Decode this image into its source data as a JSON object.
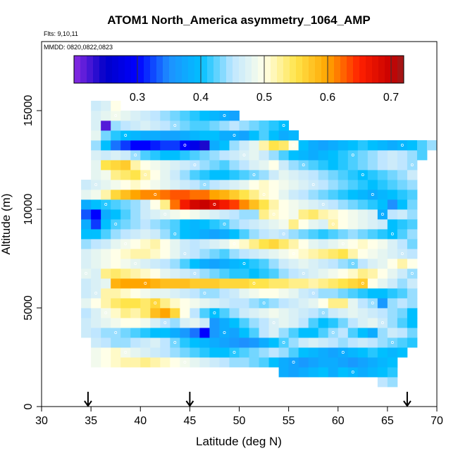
{
  "chart_data": {
    "type": "heatmap",
    "title": "ATOM1 North_America asymmetry_1064_AMP",
    "flights_label": "Flts: 9,10,11",
    "dates_label": "MMDD: 0820,0822,0823",
    "xlabel": "Latitude (deg N)",
    "ylabel": "Altitude (m)",
    "xlim": [
      30,
      70
    ],
    "ylim": [
      0,
      18500
    ],
    "x_ticks": [
      30,
      35,
      40,
      45,
      50,
      55,
      60,
      65,
      70
    ],
    "y_ticks": [
      0,
      5000,
      10000,
      15000
    ],
    "colorbar": {
      "min": 0.2,
      "max": 0.7,
      "ticks": [
        0.3,
        0.4,
        0.5,
        0.6,
        0.7
      ],
      "stops": [
        {
          "v": 0.2,
          "color": "#8a2be2"
        },
        {
          "v": 0.25,
          "color": "#0000c8"
        },
        {
          "v": 0.3,
          "color": "#0000ff"
        },
        {
          "v": 0.35,
          "color": "#1e90ff"
        },
        {
          "v": 0.4,
          "color": "#00bfff"
        },
        {
          "v": 0.45,
          "color": "#bfe6ff"
        },
        {
          "v": 0.5,
          "color": "#ffffe8"
        },
        {
          "v": 0.55,
          "color": "#ffe44a"
        },
        {
          "v": 0.6,
          "color": "#ffa500"
        },
        {
          "v": 0.65,
          "color": "#ff2000"
        },
        {
          "v": 0.7,
          "color": "#c80000"
        },
        {
          "v": 0.72,
          "color": "#9b1b1b"
        }
      ]
    },
    "arrows_x": [
      34.7,
      45.0,
      67.0
    ],
    "grid": {
      "lat_start": 34,
      "lat_step": 1,
      "alt_start": 1000,
      "alt_step": 500,
      "rows": [
        [
          null,
          null,
          null,
          null,
          null,
          null,
          null,
          null,
          null,
          null,
          null,
          null,
          null,
          null,
          null,
          null,
          null,
          null,
          null,
          null,
          null,
          null,
          null,
          null,
          null,
          null,
          null,
          null,
          null,
          null,
          0.45,
          0.44
        ],
        [
          null,
          null,
          null,
          null,
          null,
          null,
          null,
          null,
          null,
          null,
          null,
          null,
          null,
          null,
          null,
          null,
          null,
          null,
          null,
          null,
          0.38,
          0.37,
          0.38,
          0.39,
          0.4,
          0.38,
          0.4,
          0.39,
          0.38,
          0.39,
          0.4,
          0.41
        ],
        [
          null,
          0.49,
          0.5,
          0.51,
          0.52,
          0.52,
          0.53,
          0.52,
          0.51,
          0.5,
          0.49,
          0.48,
          0.47,
          0.46,
          0.45,
          0.44,
          0.44,
          0.43,
          0.42,
          0.4,
          0.38,
          0.37,
          0.36,
          0.37,
          0.38,
          0.38,
          0.37,
          0.36,
          0.37,
          0.38,
          0.39,
          0.4
        ],
        [
          null,
          0.49,
          0.5,
          0.51,
          0.49,
          0.48,
          0.47,
          0.46,
          0.45,
          0.44,
          0.43,
          0.42,
          0.41,
          0.4,
          0.4,
          0.41,
          0.42,
          0.43,
          0.44,
          0.45,
          0.44,
          0.42,
          0.4,
          0.39,
          0.38,
          0.37,
          0.38,
          0.39,
          0.4,
          0.41,
          0.4,
          0.39,
          0.4
        ],
        [
          null,
          0.46,
          0.45,
          0.44,
          0.44,
          0.45,
          0.46,
          0.47,
          0.45,
          0.43,
          0.41,
          0.4,
          0.39,
          0.38,
          0.37,
          0.36,
          0.35,
          0.36,
          0.38,
          0.4,
          0.42,
          0.44,
          0.46,
          0.47,
          0.46,
          0.45,
          0.44,
          0.45,
          0.46,
          0.45,
          0.44,
          0.43,
          0.42,
          0.41
        ],
        [
          0.46,
          0.45,
          0.44,
          0.44,
          0.43,
          0.42,
          0.41,
          0.4,
          0.4,
          0.38,
          0.36,
          0.34,
          0.3,
          0.36,
          0.38,
          0.37,
          0.4,
          0.42,
          0.45,
          0.47,
          0.44,
          0.42,
          0.4,
          0.4,
          0.42,
          0.44,
          0.45,
          0.42,
          0.4,
          0.38,
          0.44,
          0.46,
          0.45,
          0.43
        ],
        [
          0.46,
          0.47,
          0.48,
          0.49,
          0.5,
          0.5,
          0.49,
          0.47,
          0.45,
          0.44,
          0.47,
          0.48,
          0.46,
          0.36,
          0.38,
          0.4,
          0.42,
          0.44,
          0.45,
          0.47,
          0.48,
          0.47,
          0.45,
          0.42,
          0.4,
          0.41,
          0.43,
          0.45,
          0.47,
          0.48,
          0.46,
          0.44,
          0.42,
          0.4
        ],
        [
          0.45,
          0.47,
          0.49,
          0.51,
          0.53,
          0.52,
          0.54,
          0.58,
          0.6,
          0.56,
          0.5,
          0.45,
          0.42,
          0.4,
          0.42,
          0.44,
          0.46,
          0.47,
          0.48,
          0.49,
          0.48,
          0.47,
          0.46,
          0.45,
          0.44,
          0.46,
          0.47,
          0.48,
          0.47,
          0.46,
          0.45,
          0.44,
          0.43,
          0.4
        ],
        [
          0.48,
          0.5,
          0.52,
          0.54,
          0.55,
          0.55,
          0.54,
          0.56,
          0.53,
          0.51,
          0.5,
          0.49,
          0.48,
          0.47,
          0.46,
          0.45,
          0.45,
          0.44,
          0.43,
          0.44,
          0.45,
          0.46,
          0.47,
          0.48,
          0.5,
          0.53,
          0.53,
          0.48,
          0.45,
          0.44,
          0.36,
          0.44,
          0.45,
          0.44
        ],
        [
          0.46,
          0.47,
          0.52,
          0.52,
          0.51,
          0.5,
          0.49,
          0.48,
          0.48,
          0.47,
          0.46,
          0.45,
          0.44,
          0.44,
          0.45,
          0.46,
          0.48,
          0.49,
          0.5,
          0.5,
          0.49,
          0.48,
          0.46,
          0.45,
          0.44,
          0.44,
          0.43,
          0.42,
          0.41,
          0.4,
          0.4,
          0.41,
          0.42,
          0.44
        ],
        [
          0.46,
          0.47,
          0.48,
          0.59,
          0.6,
          0.6,
          0.6,
          0.59,
          0.58,
          0.58,
          0.58,
          0.57,
          0.57,
          0.57,
          0.56,
          0.56,
          0.56,
          0.55,
          0.55,
          0.54,
          0.54,
          0.53,
          0.53,
          0.52,
          0.53,
          0.54,
          0.55,
          0.56,
          0.57,
          0.5,
          0.48,
          0.46,
          0.44,
          0.46
        ],
        [
          0.48,
          0.47,
          0.53,
          0.54,
          0.53,
          0.52,
          0.51,
          0.5,
          0.48,
          0.47,
          0.46,
          0.45,
          0.44,
          0.43,
          0.42,
          0.41,
          0.41,
          0.4,
          0.41,
          0.42,
          0.44,
          0.45,
          0.46,
          0.47,
          0.48,
          0.49,
          0.5,
          0.51,
          0.53,
          0.52,
          0.5,
          0.48,
          0.46,
          0.44
        ],
        [
          0.47,
          0.48,
          0.49,
          0.5,
          0.49,
          0.48,
          0.47,
          0.46,
          0.45,
          0.44,
          0.42,
          0.4,
          0.38,
          0.37,
          0.38,
          0.39,
          0.4,
          0.41,
          0.42,
          0.44,
          0.46,
          0.47,
          0.48,
          0.47,
          0.46,
          0.45,
          0.44,
          0.43,
          0.45,
          0.47,
          0.48,
          0.5,
          0.52,
          0.5
        ],
        [
          0.47,
          0.48,
          0.49,
          0.5,
          0.51,
          0.52,
          0.52,
          0.51,
          0.5,
          0.48,
          0.46,
          0.45,
          0.44,
          0.43,
          0.42,
          0.44,
          0.45,
          0.46,
          0.47,
          0.48,
          0.49,
          0.5,
          0.51,
          0.52,
          0.53,
          0.54,
          0.55,
          0.52,
          0.5,
          0.49,
          0.48,
          0.47,
          0.46,
          0.45
        ],
        [
          0.44,
          0.45,
          0.46,
          0.48,
          0.49,
          0.5,
          0.51,
          0.52,
          0.5,
          0.48,
          0.46,
          0.45,
          0.46,
          0.47,
          0.48,
          0.5,
          0.51,
          0.53,
          0.55,
          0.56,
          0.54,
          0.52,
          0.5,
          0.48,
          0.47,
          0.48,
          0.49,
          0.5,
          0.51,
          0.5,
          0.49,
          0.47,
          0.45,
          0.43
        ],
        [
          0.4,
          0.4,
          0.42,
          0.44,
          0.45,
          0.46,
          0.47,
          0.46,
          0.44,
          0.42,
          0.4,
          0.39,
          0.38,
          0.37,
          0.38,
          0.4,
          0.42,
          0.44,
          0.45,
          0.46,
          0.45,
          0.44,
          0.43,
          0.42,
          0.41,
          0.42,
          0.43,
          0.44,
          0.43,
          0.42,
          0.41,
          0.4,
          0.42,
          0.44
        ],
        [
          0.38,
          0.32,
          0.4,
          0.42,
          0.43,
          0.44,
          0.45,
          0.44,
          0.43,
          0.42,
          0.4,
          0.39,
          0.4,
          0.41,
          0.42,
          0.44,
          0.45,
          0.46,
          0.47,
          0.48,
          0.49,
          0.53,
          0.5,
          0.48,
          0.47,
          0.52,
          0.5,
          0.49,
          0.48,
          0.47,
          0.46,
          0.4,
          0.41,
          0.42
        ],
        [
          0.33,
          0.3,
          0.38,
          0.4,
          0.42,
          0.44,
          0.46,
          0.47,
          0.48,
          0.49,
          0.5,
          0.49,
          0.48,
          0.47,
          0.46,
          0.45,
          0.44,
          0.44,
          0.53,
          0.51,
          0.5,
          0.49,
          0.53,
          0.54,
          0.52,
          0.51,
          0.5,
          0.49,
          0.48,
          0.47,
          0.38,
          0.45,
          0.46,
          0.44
        ],
        [
          0.38,
          0.4,
          0.41,
          0.42,
          0.43,
          0.44,
          0.46,
          0.5,
          0.53,
          0.62,
          0.66,
          0.69,
          0.7,
          0.68,
          0.66,
          0.64,
          0.61,
          0.58,
          0.55,
          0.52,
          0.5,
          0.49,
          0.48,
          0.47,
          0.46,
          0.45,
          0.44,
          0.43,
          0.42,
          0.41,
          0.4,
          0.35,
          0.4,
          0.43
        ],
        [
          0.48,
          0.49,
          0.52,
          0.56,
          0.58,
          0.6,
          0.61,
          0.61,
          0.62,
          0.63,
          0.63,
          0.62,
          0.62,
          0.6,
          0.59,
          0.57,
          0.55,
          0.53,
          0.51,
          0.5,
          0.48,
          0.46,
          0.45,
          0.44,
          0.43,
          0.42,
          0.41,
          0.4,
          0.39,
          0.38,
          0.39,
          0.4,
          0.41,
          0.42
        ],
        [
          0.46,
          0.47,
          0.48,
          0.49,
          0.5,
          0.51,
          0.5,
          0.49,
          0.48,
          0.47,
          0.46,
          0.45,
          0.44,
          0.45,
          0.46,
          0.47,
          0.48,
          0.5,
          0.51,
          0.5,
          0.49,
          0.48,
          0.47,
          0.46,
          0.45,
          0.44,
          0.43,
          0.42,
          0.41,
          0.4,
          0.41,
          0.42,
          0.43,
          0.44
        ],
        [
          null,
          0.48,
          0.49,
          0.53,
          0.54,
          0.55,
          0.52,
          0.5,
          0.48,
          0.46,
          0.44,
          0.42,
          0.41,
          0.4,
          0.4,
          0.41,
          0.42,
          0.43,
          0.44,
          0.46,
          0.48,
          0.47,
          0.46,
          0.45,
          0.44,
          0.43,
          0.42,
          0.41,
          0.4,
          0.41,
          0.42,
          0.43,
          0.44,
          0.46
        ],
        [
          null,
          0.48,
          0.55,
          0.56,
          0.57,
          0.52,
          0.5,
          0.49,
          0.48,
          0.47,
          0.46,
          0.45,
          0.44,
          0.43,
          0.42,
          0.44,
          0.45,
          0.47,
          0.48,
          0.5,
          0.46,
          0.44,
          0.43,
          0.42,
          0.41,
          0.4,
          0.41,
          0.42,
          0.43,
          0.44,
          0.45,
          0.46,
          0.45,
          0.44
        ],
        [
          null,
          0.47,
          0.46,
          0.47,
          0.46,
          0.44,
          0.42,
          0.41,
          0.4,
          0.4,
          0.41,
          0.42,
          0.43,
          0.44,
          0.45,
          0.46,
          0.47,
          0.48,
          0.46,
          0.44,
          0.42,
          0.4,
          0.39,
          0.38,
          0.39,
          0.4,
          0.41,
          0.42,
          0.43,
          0.44,
          0.45,
          0.46,
          0.45,
          0.44,
          0.42
        ],
        [
          null,
          0.44,
          0.4,
          0.34,
          0.32,
          0.3,
          0.3,
          0.31,
          0.32,
          0.32,
          0.3,
          0.28,
          0.24,
          0.38,
          0.4,
          0.44,
          0.46,
          0.48,
          0.52,
          0.55,
          0.54,
          0.5,
          0.4,
          0.38,
          0.37,
          0.38,
          0.39,
          0.4,
          0.41,
          0.4,
          0.39,
          0.38,
          0.39,
          0.4,
          0.42,
          0.44
        ],
        [
          null,
          0.48,
          0.43,
          0.41,
          0.4,
          0.39,
          0.38,
          0.38,
          0.37,
          0.37,
          0.38,
          0.39,
          0.4,
          0.4,
          0.38,
          0.38,
          0.37,
          0.4,
          0.42,
          0.4,
          0.38,
          0.39
        ],
        [
          null,
          0.47,
          0.22,
          0.44,
          0.45,
          0.46,
          0.47,
          0.46,
          0.45,
          0.44,
          0.43,
          0.42,
          0.42,
          0.43,
          0.44,
          0.45,
          0.44,
          0.43,
          0.42,
          0.41,
          0.4
        ],
        [
          null,
          0.47,
          0.48,
          0.49,
          0.48,
          0.47,
          0.46,
          0.45,
          0.44,
          0.43,
          0.42,
          0.41,
          0.4,
          0.39,
          0.38,
          0.37
        ],
        [
          null,
          0.46,
          0.47,
          0.5
        ]
      ]
    }
  }
}
